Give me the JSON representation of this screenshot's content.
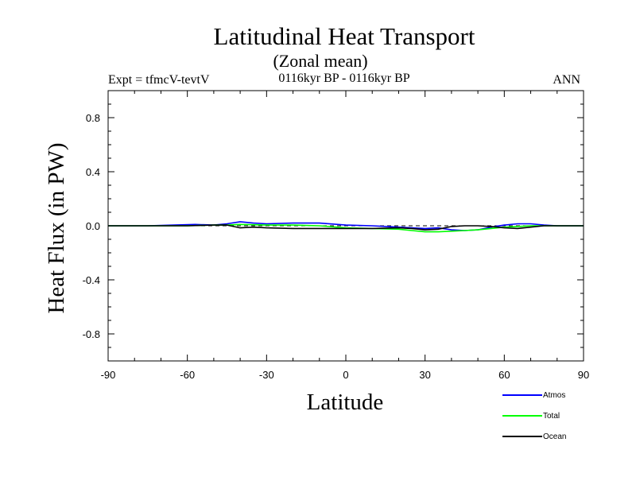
{
  "header": {
    "title": "Latitudinal Heat Transport",
    "subtitle": "(Zonal mean)",
    "left_label": "Expt = tfmcV-tevtV",
    "center_label": "0116kyr BP - 0116kyr BP",
    "right_label": "ANN"
  },
  "chart_data": {
    "type": "line",
    "title": "Latitudinal Heat Transport",
    "subtitle": "(Zonal mean)",
    "xlabel": "Latitude",
    "ylabel": "Heat Flux (in PW)",
    "xlim": [
      -90,
      90
    ],
    "ylim": [
      -1.0,
      1.0
    ],
    "xticks": [
      -90,
      -60,
      -30,
      0,
      30,
      60,
      90
    ],
    "xtick_labels": [
      "-90",
      "-60",
      "-30",
      "0",
      "30",
      "60",
      "90"
    ],
    "yticks": [
      -0.8,
      -0.4,
      0.0,
      0.4,
      0.8
    ],
    "ytick_labels": [
      "-0.8",
      "-0.4",
      "0.0",
      "0.4",
      "0.8"
    ],
    "grid": false,
    "legend_position": "bottom-right",
    "zero_line": true,
    "series": [
      {
        "name": "Atmos",
        "color": "#0000ff",
        "x": [
          -90,
          -75,
          -65,
          -57,
          -50,
          -45,
          -40,
          -35,
          -30,
          -20,
          -10,
          0,
          10,
          20,
          25,
          30,
          35,
          40,
          45,
          50,
          55,
          60,
          65,
          70,
          75,
          80,
          90
        ],
        "y": [
          0.0,
          0.0,
          0.005,
          0.01,
          0.005,
          0.015,
          0.03,
          0.02,
          0.015,
          0.02,
          0.02,
          0.005,
          0.0,
          -0.01,
          -0.015,
          -0.02,
          -0.015,
          -0.03,
          -0.035,
          -0.03,
          -0.01,
          0.005,
          0.015,
          0.015,
          0.005,
          0.0,
          0.0
        ]
      },
      {
        "name": "Total",
        "color": "#00ff00",
        "x": [
          -90,
          -75,
          -60,
          -50,
          -45,
          -40,
          -30,
          -20,
          -10,
          0,
          10,
          20,
          25,
          30,
          35,
          40,
          45,
          50,
          55,
          60,
          65,
          70,
          75,
          80,
          90
        ],
        "y": [
          0.0,
          0.0,
          0.0,
          0.005,
          0.005,
          0.01,
          0.005,
          0.005,
          0.0,
          -0.015,
          -0.02,
          -0.025,
          -0.035,
          -0.045,
          -0.045,
          -0.04,
          -0.035,
          -0.03,
          -0.02,
          -0.01,
          -0.005,
          0.0,
          0.0,
          0.0,
          0.0
        ]
      },
      {
        "name": "Ocean",
        "color": "#000000",
        "x": [
          -90,
          -70,
          -60,
          -50,
          -45,
          -40,
          -35,
          -30,
          -20,
          -10,
          0,
          10,
          20,
          25,
          30,
          35,
          40,
          45,
          50,
          55,
          60,
          65,
          70,
          75,
          80,
          90
        ],
        "y": [
          0.0,
          0.0,
          0.0,
          0.005,
          0.005,
          -0.015,
          -0.01,
          -0.015,
          -0.02,
          -0.02,
          -0.02,
          -0.02,
          -0.015,
          -0.02,
          -0.03,
          -0.025,
          -0.005,
          0.0,
          0.0,
          -0.005,
          -0.015,
          -0.02,
          -0.01,
          0.0,
          0.0,
          0.0
        ]
      }
    ]
  }
}
